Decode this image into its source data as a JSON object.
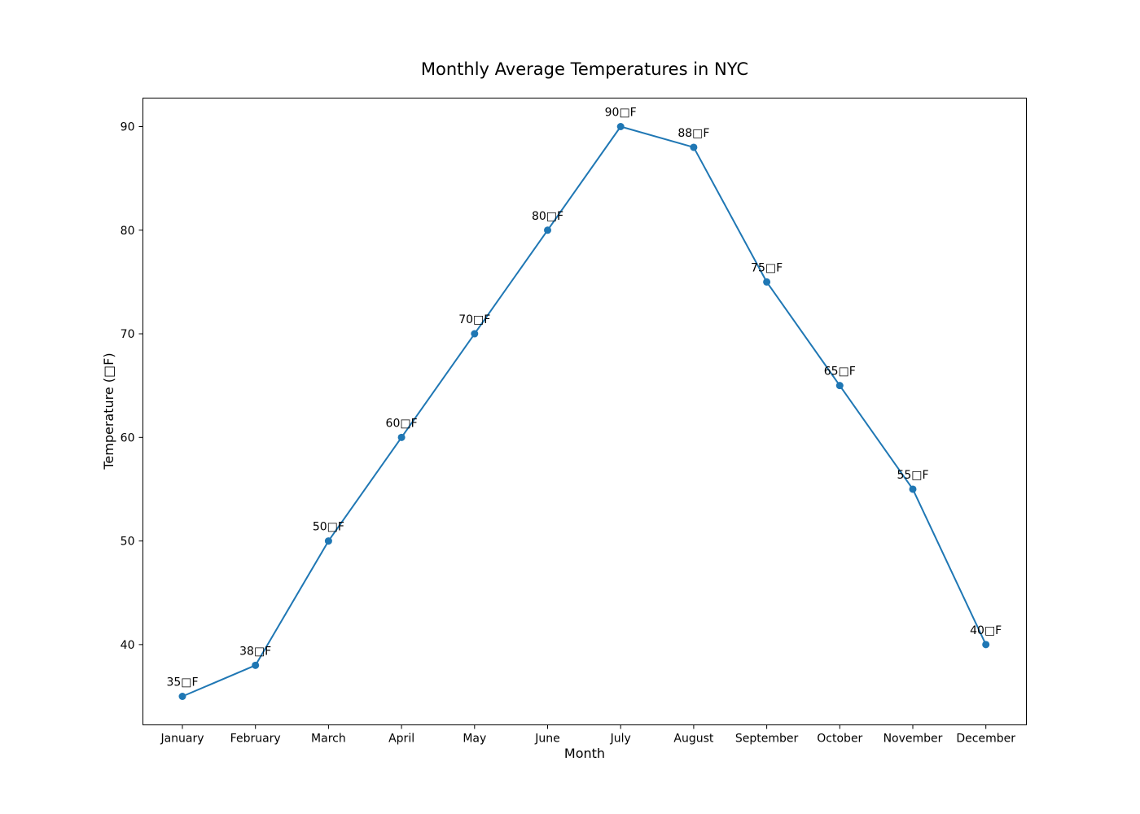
{
  "chart_data": {
    "type": "line",
    "title": "Monthly Average Temperatures in NYC",
    "xlabel": "Month",
    "ylabel": "Temperature (□F)",
    "categories": [
      "January",
      "February",
      "March",
      "April",
      "May",
      "June",
      "July",
      "August",
      "September",
      "October",
      "November",
      "December"
    ],
    "series": [
      {
        "values": [
          35,
          38,
          50,
          60,
          70,
          80,
          90,
          88,
          75,
          65,
          55,
          40
        ],
        "color": "#1f77b4",
        "marker": "circle"
      }
    ],
    "data_labels": [
      "35□F",
      "38□F",
      "50□F",
      "60□F",
      "70□F",
      "80□F",
      "90□F",
      "88□F",
      "75□F",
      "65□F",
      "55□F",
      "40□F"
    ],
    "y_ticks": [
      40,
      50,
      60,
      70,
      80,
      90
    ],
    "ylim": [
      32.25,
      92.75
    ],
    "grid": false,
    "legend": "none"
  }
}
